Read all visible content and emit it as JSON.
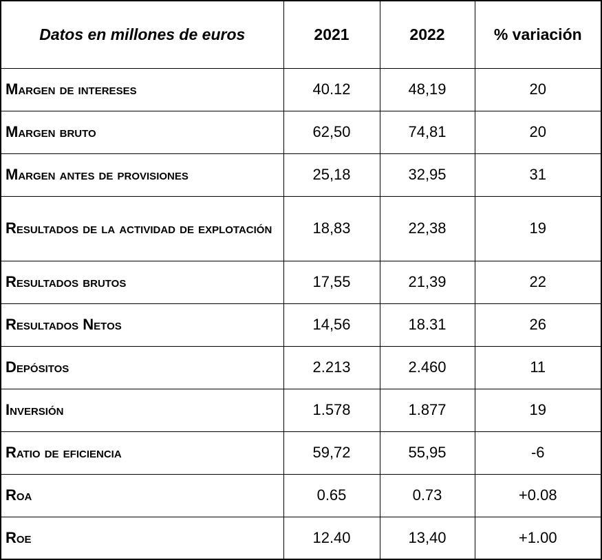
{
  "table": {
    "header": {
      "title": "Datos en millones de euros",
      "col_2021": "2021",
      "col_2022": "2022",
      "col_variation": "% variación"
    },
    "rows": [
      {
        "label": "Margen de intereses",
        "y2021": "40.12",
        "y2022": "48,19",
        "variation": "20"
      },
      {
        "label": "Margen bruto",
        "y2021": "62,50",
        "y2022": "74,81",
        "variation": "20"
      },
      {
        "label": "Margen antes de provisiones",
        "y2021": "25,18",
        "y2022": "32,95",
        "variation": "31"
      },
      {
        "label": "Resultados de la actividad de explotación",
        "y2021": "18,83",
        "y2022": "22,38",
        "variation": "19"
      },
      {
        "label": "Resultados brutos",
        "y2021": "17,55",
        "y2022": "21,39",
        "variation": "22"
      },
      {
        "label": "Resultados Netos",
        "y2021": "14,56",
        "y2022": "18.31",
        "variation": "26"
      },
      {
        "label": "Depósitos",
        "y2021": "2.213",
        "y2022": "2.460",
        "variation": "11"
      },
      {
        "label": "Inversión",
        "y2021": "1.578",
        "y2022": "1.877",
        "variation": "19"
      },
      {
        "label": "Ratio de eficiencia",
        "y2021": "59,72",
        "y2022": "55,95",
        "variation": "-6"
      },
      {
        "label": "Roa",
        "y2021": "0.65",
        "y2022": "0.73",
        "variation": "+0.08"
      },
      {
        "label": "Roe",
        "y2021": "12.40",
        "y2022": "13,40",
        "variation": "+1.00"
      }
    ]
  }
}
